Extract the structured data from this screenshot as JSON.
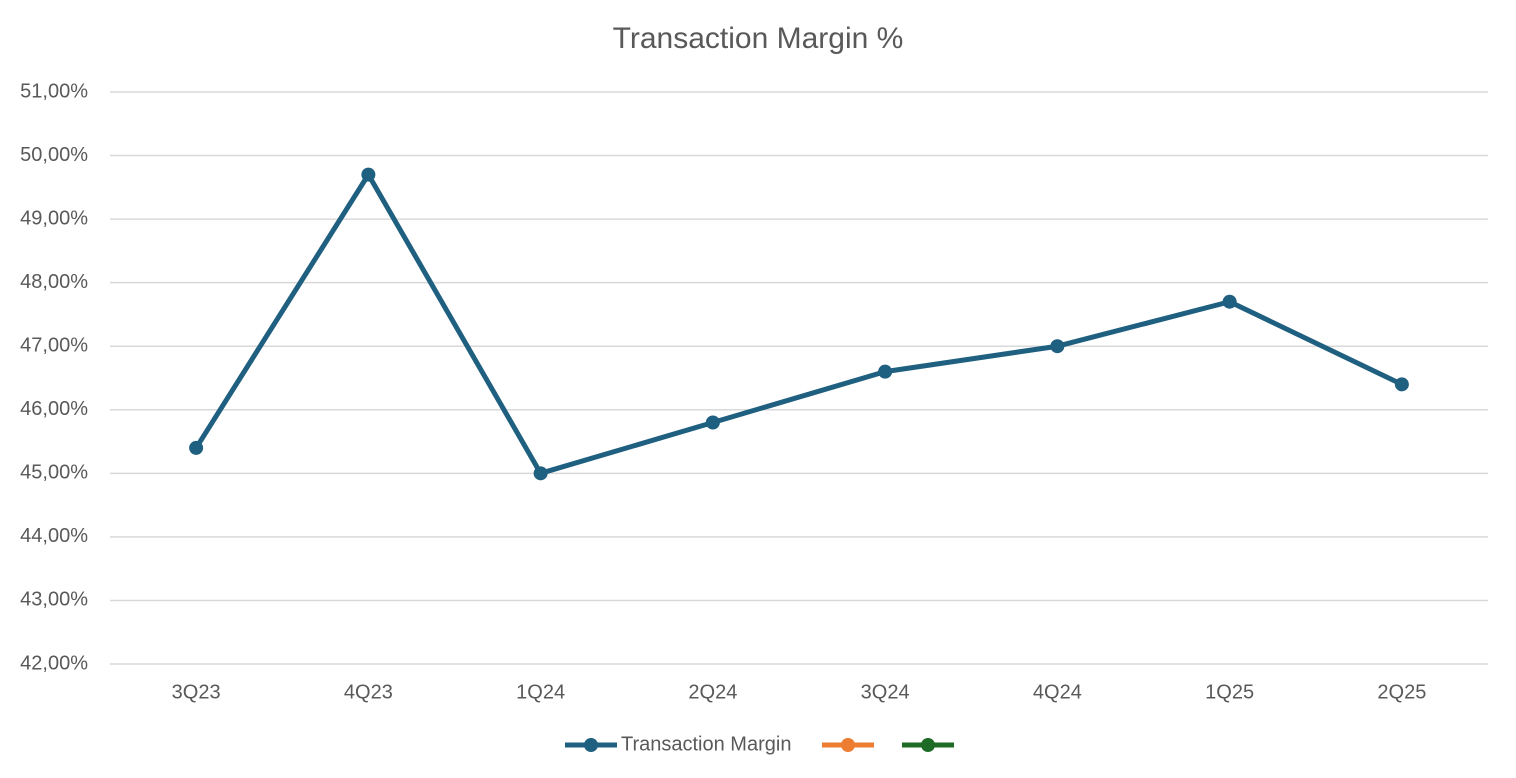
{
  "chart_data": {
    "type": "line",
    "title": "Transaction Margin %",
    "categories": [
      "3Q23",
      "4Q23",
      "1Q24",
      "2Q24",
      "3Q24",
      "4Q24",
      "1Q25",
      "2Q25"
    ],
    "series": [
      {
        "name": "Transaction Margin",
        "color": "#1f5f80",
        "values": [
          45.4,
          49.7,
          45.0,
          45.8,
          46.6,
          47.0,
          47.7,
          46.4
        ]
      },
      {
        "name": null,
        "color": "#ed7d31",
        "values": [
          null,
          null,
          null,
          null,
          null,
          null,
          null,
          null
        ]
      },
      {
        "name": null,
        "color": "#1e6b25",
        "values": [
          null,
          null,
          null,
          null,
          null,
          null,
          null,
          null
        ]
      }
    ],
    "ylim": [
      42,
      51
    ],
    "yticks": [
      {
        "value": 42,
        "label": "42,00%"
      },
      {
        "value": 43,
        "label": "43,00%"
      },
      {
        "value": 44,
        "label": "44,00%"
      },
      {
        "value": 45,
        "label": "45,00%"
      },
      {
        "value": 46,
        "label": "46,00%"
      },
      {
        "value": 47,
        "label": "47,00%"
      },
      {
        "value": 48,
        "label": "48,00%"
      },
      {
        "value": 49,
        "label": "49,00%"
      },
      {
        "value": 50,
        "label": "50,00%"
      },
      {
        "value": 51,
        "label": "51,00%"
      }
    ],
    "grid": true,
    "legend": "bottom"
  }
}
